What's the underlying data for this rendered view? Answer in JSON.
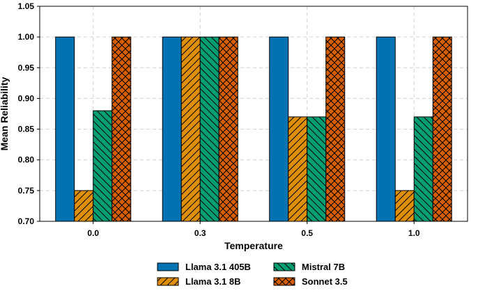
{
  "chart_data": {
    "type": "bar",
    "xlabel": "Temperature",
    "ylabel": "Mean Reliability",
    "categories": [
      "0.0",
      "0.3",
      "0.5",
      "1.0"
    ],
    "ylim": [
      0.7,
      1.05
    ],
    "yticks": [
      "0.70",
      "0.75",
      "0.80",
      "0.85",
      "0.90",
      "0.95",
      "1.00",
      "1.05"
    ],
    "grid": true,
    "legend_position": "bottom-center",
    "series": [
      {
        "name": "Llama 3.1 405B",
        "color": "#0173b2",
        "pattern": "none",
        "values": [
          1.0,
          1.0,
          1.0,
          1.0
        ]
      },
      {
        "name": "Llama 3.1 8B",
        "color": "#de8f05",
        "pattern": "forward-diagonal",
        "values": [
          0.75,
          1.0,
          0.87,
          0.75
        ]
      },
      {
        "name": "Mistral 7B",
        "color": "#029e73",
        "pattern": "back-diagonal",
        "values": [
          0.88,
          1.0,
          0.87,
          0.87
        ]
      },
      {
        "name": "Sonnet 3.5",
        "color": "#d55e00",
        "pattern": "crosshatch",
        "values": [
          1.0,
          1.0,
          1.0,
          1.0
        ]
      }
    ]
  }
}
